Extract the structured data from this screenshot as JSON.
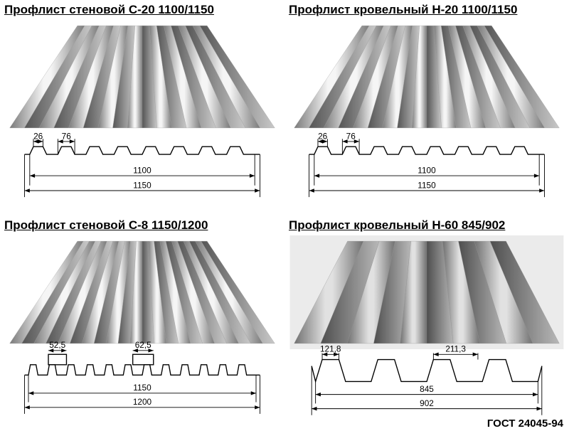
{
  "gost_label": "ГОСТ 24045-94",
  "panels": [
    {
      "title": "Профлист стеновой С-20 1100/1150",
      "render_type": "fine",
      "render_ribs": 9,
      "profile_type": "c20",
      "dims": {
        "pitch_small": "26",
        "pitch_large": "76",
        "width_useful": "1100",
        "width_total": "1150"
      }
    },
    {
      "title": "Профлист кровельный Н-20 1100/1150",
      "render_type": "fine",
      "render_ribs": 9,
      "profile_type": "h20",
      "dims": {
        "pitch_small": "26",
        "pitch_large": "76",
        "width_useful": "1100",
        "width_total": "1150"
      }
    },
    {
      "title": "Профлист стеновой С-8 1150/1200",
      "render_type": "fine",
      "render_ribs": 11,
      "profile_type": "c8",
      "dims": {
        "pitch_small": "52,5",
        "pitch_large": "62,5",
        "width_useful": "1150",
        "width_total": "1200"
      }
    },
    {
      "title": "Профлист кровельный Н-60 845/902",
      "render_type": "deep",
      "render_ribs": 5,
      "profile_type": "h60",
      "dims": {
        "pitch_small": "121,8",
        "pitch_large": "211,3",
        "width_useful": "845",
        "width_total": "902"
      }
    }
  ],
  "colors": {
    "metal_light": "#f5f5f5",
    "metal_mid": "#c8c8c8",
    "metal_dark": "#7a7a7a",
    "metal_shadow": "#555555",
    "line": "#000000"
  }
}
